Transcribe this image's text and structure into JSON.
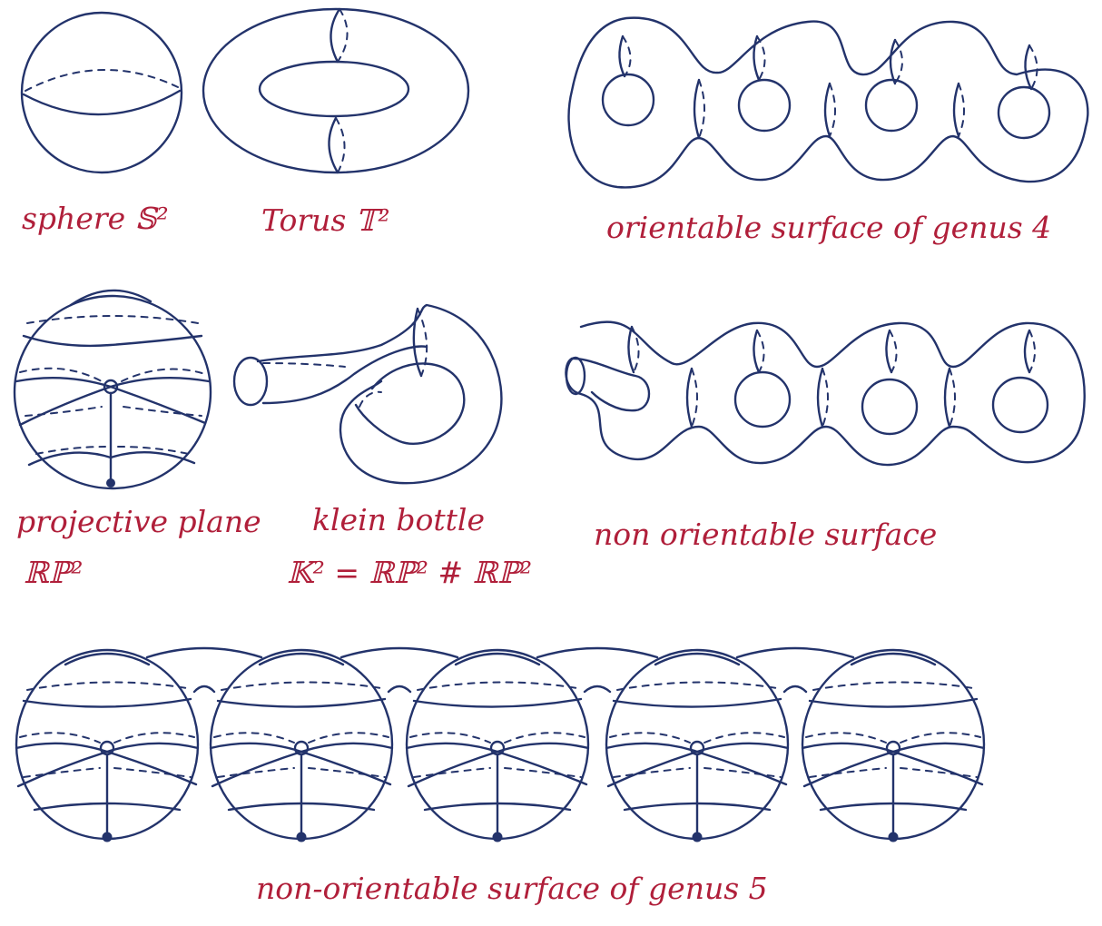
{
  "colors": {
    "ink": "#23336b",
    "label": "#b01f3a",
    "paper": "#ffffff"
  },
  "labels": {
    "sphere": "sphere 𝕊²",
    "torus": "Torus 𝕋²",
    "genus4": "orientable surface of genus 4",
    "projective_1": "projective plane",
    "projective_2": "ℝℙ²",
    "klein_1": "klein bottle",
    "klein_2": "𝕂² = ℝℙ² # ℝℙ²",
    "nonorientable": "non orientable surface",
    "genus5": "non-orientable surface of genus 5"
  }
}
